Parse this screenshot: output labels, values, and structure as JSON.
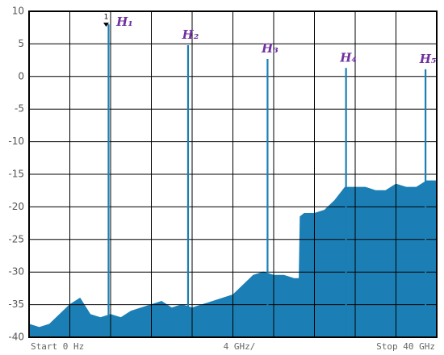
{
  "chart_data": {
    "type": "spectrum",
    "xlim": [
      0,
      40
    ],
    "xticks": [
      0,
      4,
      8,
      12,
      16,
      20,
      24,
      28,
      32,
      36,
      40
    ],
    "ylim": [
      -40,
      10
    ],
    "yticks": [
      10,
      5,
      0,
      -5,
      -10,
      -15,
      -20,
      -25,
      -30,
      -35,
      -40
    ],
    "grid": true,
    "footer": [
      "Start 0 Hz",
      "4 GHz/",
      "Stop 40 GHz"
    ],
    "marker_label": "1",
    "noise": {
      "color": "#1b7fb5",
      "x": [
        0,
        1,
        2,
        3,
        4,
        5,
        6,
        7,
        8,
        9,
        10,
        11,
        12,
        13,
        14,
        15,
        16,
        17,
        18,
        19,
        20,
        21,
        22,
        23,
        24,
        25,
        26,
        26.5,
        26.6,
        27,
        28,
        29,
        30,
        31,
        32,
        33,
        34,
        35,
        36,
        37,
        38,
        39,
        40
      ],
      "values": [
        -38,
        -38.5,
        -38,
        -36.5,
        -35,
        -34,
        -36.5,
        -37,
        -36.5,
        -37,
        -36,
        -35.5,
        -35,
        -34.5,
        -35.5,
        -35,
        -35.5,
        -35,
        -34.5,
        -34,
        -33.5,
        -32,
        -30.5,
        -30,
        -30.5,
        -30.5,
        -31,
        -31,
        -21.5,
        -21,
        -21,
        -20.5,
        -19,
        -17,
        -17,
        -17,
        -17.5,
        -17.5,
        -16.5,
        -17,
        -17,
        -16,
        -16
      ]
    },
    "harmonics": {
      "color": "#1b7fb5",
      "labels": [
        "H₁",
        "H₂",
        "H₃",
        "H₄",
        "H₅"
      ],
      "x": [
        7.8,
        15.6,
        23.4,
        31.1,
        38.9
      ],
      "values": [
        8,
        4.8,
        2.7,
        1.3,
        1.1
      ]
    }
  }
}
